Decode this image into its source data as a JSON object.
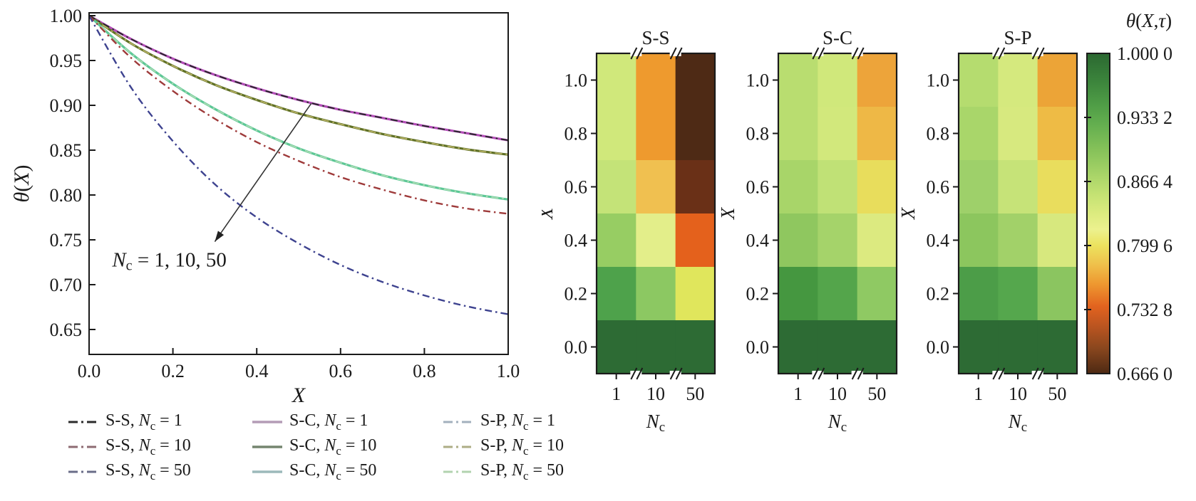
{
  "figure": {
    "background": "#ffffff",
    "text_color": "#1a1a1a"
  },
  "chart_data": [
    {
      "id": "theta-profile",
      "type": "line",
      "title": "",
      "xlabel": "X",
      "ylabel": "θ(X)",
      "xlim": [
        0,
        1
      ],
      "ylim": [
        0.622,
        1.003
      ],
      "grid": false,
      "x_ticks": [
        "0.0",
        "0.2",
        "0.4",
        "0.6",
        "0.8",
        "1.0"
      ],
      "y_ticks": [
        "1.00",
        "0.95",
        "0.90",
        "0.85",
        "0.80",
        "0.75",
        "0.70",
        "0.65"
      ],
      "x": [
        0.0,
        0.1,
        0.2,
        0.3,
        0.4,
        0.5,
        0.6,
        0.7,
        0.8,
        0.9,
        1.0
      ],
      "series": [
        {
          "name": "S-C, N_c = 1",
          "color": "#b44cb8",
          "dash": "solid",
          "width": 3.2,
          "values": [
            1.0,
            0.974,
            0.952,
            0.934,
            0.919,
            0.906,
            0.895,
            0.886,
            0.877,
            0.869,
            0.861
          ]
        },
        {
          "name": "S-C, N_c = 10",
          "color": "#5f7026",
          "dash": "solid",
          "width": 3.2,
          "values": [
            1.0,
            0.969,
            0.944,
            0.923,
            0.906,
            0.891,
            0.879,
            0.868,
            0.859,
            0.851,
            0.845
          ]
        },
        {
          "name": "S-C, N_c = 50",
          "color": "#5cc796",
          "dash": "solid",
          "width": 3.2,
          "values": [
            1.0,
            0.958,
            0.924,
            0.896,
            0.872,
            0.852,
            0.836,
            0.822,
            0.811,
            0.802,
            0.795
          ]
        },
        {
          "name": "S-P, N_c = 1",
          "color": "#9fb3c8",
          "dash": "dashdot",
          "width": 1.8,
          "values": [
            1.0,
            0.974,
            0.952,
            0.934,
            0.919,
            0.906,
            0.895,
            0.886,
            0.877,
            0.869,
            0.861
          ]
        },
        {
          "name": "S-P, N_c = 10",
          "color": "#b7b264",
          "dash": "dashdot",
          "width": 1.8,
          "values": [
            1.0,
            0.969,
            0.944,
            0.923,
            0.906,
            0.891,
            0.879,
            0.868,
            0.859,
            0.851,
            0.845
          ]
        },
        {
          "name": "S-P, N_c = 50",
          "color": "#abdcb2",
          "dash": "dashdot",
          "width": 1.8,
          "values": [
            1.0,
            0.958,
            0.924,
            0.896,
            0.872,
            0.852,
            0.836,
            0.822,
            0.811,
            0.802,
            0.795
          ]
        },
        {
          "name": "S-S, N_c = 1",
          "color": "#222222",
          "dash": "dashdot",
          "width": 1.8,
          "values": [
            1.0,
            0.974,
            0.952,
            0.934,
            0.919,
            0.906,
            0.895,
            0.886,
            0.877,
            0.869,
            0.861
          ]
        },
        {
          "name": "S-S, N_c = 10",
          "color": "#9e3a3a",
          "dash": "dashdot",
          "width": 2.4,
          "values": [
            1.0,
            0.953,
            0.916,
            0.885,
            0.859,
            0.838,
            0.82,
            0.806,
            0.794,
            0.785,
            0.779
          ]
        },
        {
          "name": "S-S, N_c = 50",
          "color": "#3d428f",
          "dash": "dashdot",
          "width": 2.4,
          "values": [
            1.0,
            0.92,
            0.86,
            0.812,
            0.775,
            0.746,
            0.722,
            0.703,
            0.688,
            0.676,
            0.667
          ]
        }
      ],
      "annotation": {
        "text": "N_c = 1, 10, 50",
        "text_x": 0.055,
        "text_y": 0.728,
        "arrow_x1": 0.53,
        "arrow_y1": 0.902,
        "arrow_x2": 0.3,
        "arrow_y2": 0.748
      },
      "legend_items": [
        {
          "label": "S-S, N_c = 1",
          "color": "#2b2b2b",
          "dash": "dashdot"
        },
        {
          "label": "S-C, N_c = 1",
          "color": "#b49cb6",
          "dash": "solid"
        },
        {
          "label": "S-P, N_c = 1",
          "color": "#a3b0bd",
          "dash": "dashdot"
        },
        {
          "label": "S-S, N_c = 10",
          "color": "#8d6b72",
          "dash": "dashdot"
        },
        {
          "label": "S-C, N_c = 10",
          "color": "#74856f",
          "dash": "solid"
        },
        {
          "label": "S-P, N_c = 10",
          "color": "#adad85",
          "dash": "dashdot"
        },
        {
          "label": "S-S, N_c = 50",
          "color": "#6a6d88",
          "dash": "dashdot"
        },
        {
          "label": "S-C, N_c = 50",
          "color": "#9cb9ba",
          "dash": "solid"
        },
        {
          "label": "S-P, N_c = 50",
          "color": "#b2d3af",
          "dash": "dashdot"
        }
      ]
    },
    {
      "id": "heatmap-ss",
      "type": "heatmap",
      "title": "S-S",
      "xlabel": "N_c",
      "ylabel": "X",
      "x_categories": [
        "1",
        "10",
        "50"
      ],
      "y_categories_top_to_bottom": [
        "1.0",
        "0.8",
        "0.6",
        "0.4",
        "0.2",
        "0.0"
      ],
      "values": [
        [
          0.856,
          0.753,
          0.667
        ],
        [
          0.856,
          0.753,
          0.667
        ],
        [
          0.861,
          0.781,
          0.699
        ],
        [
          0.899,
          0.833,
          0.734
        ],
        [
          0.949,
          0.903,
          0.806
        ],
        [
          0.996,
          0.996,
          0.996
        ]
      ],
      "cell_colors": [
        [
          "#d0e87b",
          "#ee9a2e",
          "#4e2a15"
        ],
        [
          "#d0e87b",
          "#ee9a2e",
          "#4e2a15"
        ],
        [
          "#c4e378",
          "#f0c050",
          "#6a3017"
        ],
        [
          "#97cd63",
          "#e3ee8a",
          "#e4611c"
        ],
        [
          "#4ea24b",
          "#8cc862",
          "#e0e65c"
        ],
        [
          "#2d6b34",
          "#2d6b34",
          "#2d6b34"
        ]
      ]
    },
    {
      "id": "heatmap-sc",
      "type": "heatmap",
      "title": "S-C",
      "xlabel": "N_c",
      "ylabel": "X",
      "x_categories": [
        "1",
        "10",
        "50"
      ],
      "y_categories_top_to_bottom": [
        "1.0",
        "0.8",
        "0.6",
        "0.4",
        "0.2",
        "0.0"
      ],
      "values": [
        [
          0.869,
          0.858,
          0.757
        ],
        [
          0.869,
          0.857,
          0.77
        ],
        [
          0.876,
          0.866,
          0.801
        ],
        [
          0.898,
          0.879,
          0.836
        ],
        [
          0.952,
          0.946,
          0.902
        ],
        [
          0.996,
          0.996,
          0.996
        ]
      ],
      "cell_colors": [
        [
          "#b9dd70",
          "#d0e87b",
          "#eda43a"
        ],
        [
          "#b9dd70",
          "#d2e87c",
          "#eeb846"
        ],
        [
          "#a8d569",
          "#c0e176",
          "#e8dd5c"
        ],
        [
          "#8fc75f",
          "#a5d36a",
          "#dcea80"
        ],
        [
          "#459740",
          "#54a54b",
          "#8fc963"
        ],
        [
          "#2d6b34",
          "#2d6b34",
          "#2d6b34"
        ]
      ]
    },
    {
      "id": "heatmap-sp",
      "type": "heatmap",
      "title": "S-P",
      "xlabel": "N_c",
      "ylabel": "X",
      "x_categories": [
        "1",
        "10",
        "50"
      ],
      "y_categories_top_to_bottom": [
        "1.0",
        "0.8",
        "0.6",
        "0.4",
        "0.2",
        "0.0"
      ],
      "values": [
        [
          0.868,
          0.856,
          0.757
        ],
        [
          0.871,
          0.856,
          0.77
        ],
        [
          0.877,
          0.864,
          0.801
        ],
        [
          0.899,
          0.877,
          0.849
        ],
        [
          0.951,
          0.947,
          0.904
        ],
        [
          0.996,
          0.996,
          0.996
        ]
      ],
      "cell_colors": [
        [
          "#b5dc6f",
          "#d5e97e",
          "#eca437"
        ],
        [
          "#a9d66a",
          "#d7e97f",
          "#eebb45"
        ],
        [
          "#9ed06a",
          "#c6e378",
          "#e9dd5d"
        ],
        [
          "#8cc65e",
          "#a2d169",
          "#d7e87e"
        ],
        [
          "#4c9d48",
          "#55a74d",
          "#8bc560"
        ],
        [
          "#2d6b34",
          "#2d6b34",
          "#2d6b34"
        ]
      ]
    }
  ],
  "colorbar": {
    "title": "θ(X,τ)",
    "tick_labels": [
      "1.000 0",
      "0.933 2",
      "0.866 4",
      "0.799 6",
      "0.732 8",
      "0.666 0"
    ],
    "gradient_top_to_bottom": [
      [
        0.0,
        "#2b6831"
      ],
      [
        0.08,
        "#3a823b"
      ],
      [
        0.16,
        "#4f9d46"
      ],
      [
        0.22,
        "#63ae4f"
      ],
      [
        0.3,
        "#85c159"
      ],
      [
        0.38,
        "#a8d468"
      ],
      [
        0.44,
        "#c4e273"
      ],
      [
        0.5,
        "#dceb7f"
      ],
      [
        0.55,
        "#ecf18e"
      ],
      [
        0.6,
        "#ece25e"
      ],
      [
        0.66,
        "#efc04b"
      ],
      [
        0.72,
        "#ee9830"
      ],
      [
        0.79,
        "#e2631f"
      ],
      [
        0.85,
        "#bc5520"
      ],
      [
        0.92,
        "#8a471e"
      ],
      [
        1.0,
        "#4d2913"
      ]
    ]
  }
}
